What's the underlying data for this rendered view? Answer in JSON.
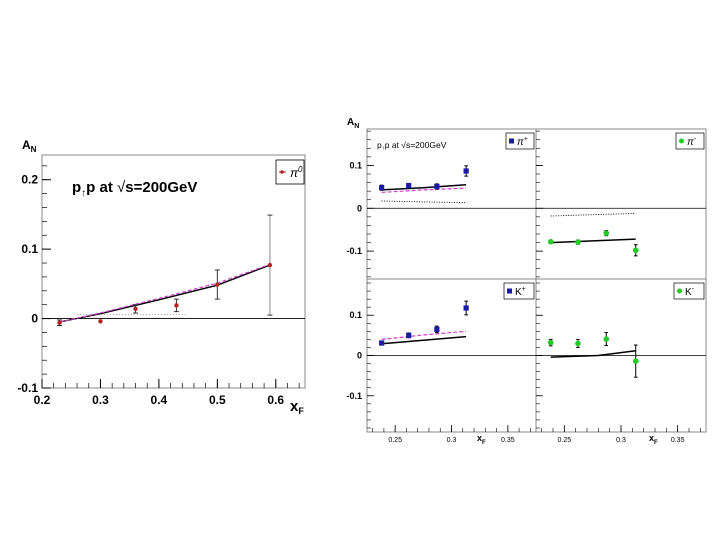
{
  "chart_data": [
    {
      "id": "left",
      "type": "scatter",
      "ylabel": "A",
      "ylabel_sub": "N",
      "xlabel": "x",
      "xlabel_sub": "F",
      "title_p": "p",
      "title_arrow": "↑",
      "title_rest": "p at ",
      "title_sqrt": "√",
      "title_energy": "s=200GeV",
      "legend": "π",
      "legend_sup": "0",
      "xlim": [
        0.2,
        0.65
      ],
      "ylim": [
        -0.1,
        0.25
      ],
      "xticks": [
        0.2,
        0.3,
        0.4,
        0.5,
        0.6
      ],
      "xtick_labels": [
        "0.2",
        "0.3",
        "0.4",
        "0.5",
        "0.6"
      ],
      "yticks": [
        -0.1,
        0,
        0.1,
        0.2
      ],
      "ytick_labels": [
        "-0.1",
        "0",
        "0.1",
        "0.2"
      ],
      "points": [
        {
          "x": 0.23,
          "y": -0.006,
          "err": 0.004
        },
        {
          "x": 0.3,
          "y": -0.004,
          "err": 0.0
        },
        {
          "x": 0.36,
          "y": 0.014,
          "err": 0.006
        },
        {
          "x": 0.43,
          "y": 0.019,
          "err": 0.009
        },
        {
          "x": 0.5,
          "y": 0.049,
          "err": 0.021
        },
        {
          "x": 0.59,
          "y": 0.077,
          "err": 0.072
        }
      ],
      "curve_solid": [
        [
          0.23,
          -0.005
        ],
        [
          0.3,
          0.007
        ],
        [
          0.4,
          0.027
        ],
        [
          0.5,
          0.048
        ],
        [
          0.59,
          0.077
        ]
      ],
      "curve_dashed": [
        [
          0.23,
          -0.005
        ],
        [
          0.3,
          0.008
        ],
        [
          0.4,
          0.029
        ],
        [
          0.5,
          0.051
        ],
        [
          0.59,
          0.078
        ]
      ],
      "curve_dotted": [
        [
          0.26,
          0.006
        ],
        [
          0.45,
          0.006
        ]
      ],
      "colors": {
        "points": "#b22222",
        "solid": "#000000",
        "dashed": "#cc44cc"
      }
    },
    {
      "id": "right",
      "type": "scatter",
      "ylabel": "A",
      "ylabel_sub": "N",
      "xlabel": "x",
      "xlabel_sub": "F",
      "header_text": "p",
      "header_arrow": "↑",
      "header_rest": "p at ",
      "header_sqrt": "√",
      "header_energy": "s=200GeV",
      "xlim": [
        0.225,
        0.375
      ],
      "ylim_top": [
        -0.165,
        0.185
      ],
      "ylim_bottom": [
        -0.19,
        0.19
      ],
      "yticks": [
        -0.1,
        0,
        0.1
      ],
      "ytick_labels": [
        "-0.1",
        "0",
        "0.1"
      ],
      "xticks": [
        0.25,
        0.3,
        0.35
      ],
      "xtick_labels": [
        "0.25",
        "0.3",
        "0.35"
      ],
      "colors": {
        "blue": "#1a1aa6",
        "green": "#22cc22",
        "solid": "#000000",
        "dashed": "#cc44cc",
        "dotted": "#000000"
      },
      "panels": [
        {
          "id": "pi-plus",
          "label": "π",
          "label_sup": "+",
          "marker": "square",
          "color_key": "blue",
          "points": [
            {
              "x": 0.238,
              "y": 0.048,
              "err": 0.006
            },
            {
              "x": 0.262,
              "y": 0.053,
              "err": 0.005
            },
            {
              "x": 0.287,
              "y": 0.051,
              "err": 0.006
            },
            {
              "x": 0.313,
              "y": 0.087,
              "err": 0.012
            }
          ],
          "curve_solid": [
            [
              0.238,
              0.043
            ],
            [
              0.275,
              0.048
            ],
            [
              0.313,
              0.055
            ]
          ],
          "curve_dashed": [
            [
              0.238,
              0.037
            ],
            [
              0.275,
              0.043
            ],
            [
              0.313,
              0.047
            ]
          ],
          "curve_dotted": [
            [
              0.238,
              0.017
            ],
            [
              0.275,
              0.015
            ],
            [
              0.313,
              0.013
            ]
          ]
        },
        {
          "id": "pi-minus",
          "label": "π",
          "label_sup": "-",
          "marker": "diamond",
          "color_key": "green",
          "points": [
            {
              "x": 0.238,
              "y": -0.078,
              "err": 0.004
            },
            {
              "x": 0.262,
              "y": -0.079,
              "err": 0.005
            },
            {
              "x": 0.287,
              "y": -0.058,
              "err": 0.006
            },
            {
              "x": 0.313,
              "y": -0.098,
              "err": 0.013
            }
          ],
          "curve_solid": [
            [
              0.238,
              -0.08
            ],
            [
              0.275,
              -0.076
            ],
            [
              0.313,
              -0.072
            ]
          ],
          "curve_dashed": [],
          "curve_dotted": [
            [
              0.238,
              -0.018
            ],
            [
              0.275,
              -0.015
            ],
            [
              0.313,
              -0.012
            ]
          ]
        },
        {
          "id": "k-plus",
          "label": "K",
          "label_sup": "+",
          "marker": "square",
          "color_key": "blue",
          "points": [
            {
              "x": 0.238,
              "y": 0.031,
              "err": 0.005
            },
            {
              "x": 0.262,
              "y": 0.05,
              "err": 0.006
            },
            {
              "x": 0.287,
              "y": 0.065,
              "err": 0.008
            },
            {
              "x": 0.313,
              "y": 0.118,
              "err": 0.017
            }
          ],
          "curve_solid": [
            [
              0.238,
              0.029
            ],
            [
              0.275,
              0.038
            ],
            [
              0.313,
              0.047
            ]
          ],
          "curve_dashed": [
            [
              0.238,
              0.04
            ],
            [
              0.275,
              0.051
            ],
            [
              0.313,
              0.06
            ]
          ],
          "curve_dotted": []
        },
        {
          "id": "k-minus",
          "label": "K",
          "label_sup": "-",
          "marker": "diamond",
          "color_key": "green",
          "points": [
            {
              "x": 0.238,
              "y": 0.032,
              "err": 0.008
            },
            {
              "x": 0.262,
              "y": 0.03,
              "err": 0.01
            },
            {
              "x": 0.287,
              "y": 0.041,
              "err": 0.016
            },
            {
              "x": 0.313,
              "y": -0.014,
              "err": 0.04
            }
          ],
          "curve_solid": [
            [
              0.238,
              -0.004
            ],
            [
              0.28,
              0.0
            ],
            [
              0.313,
              0.012
            ]
          ],
          "curve_dashed": [],
          "curve_dotted": []
        }
      ]
    }
  ]
}
